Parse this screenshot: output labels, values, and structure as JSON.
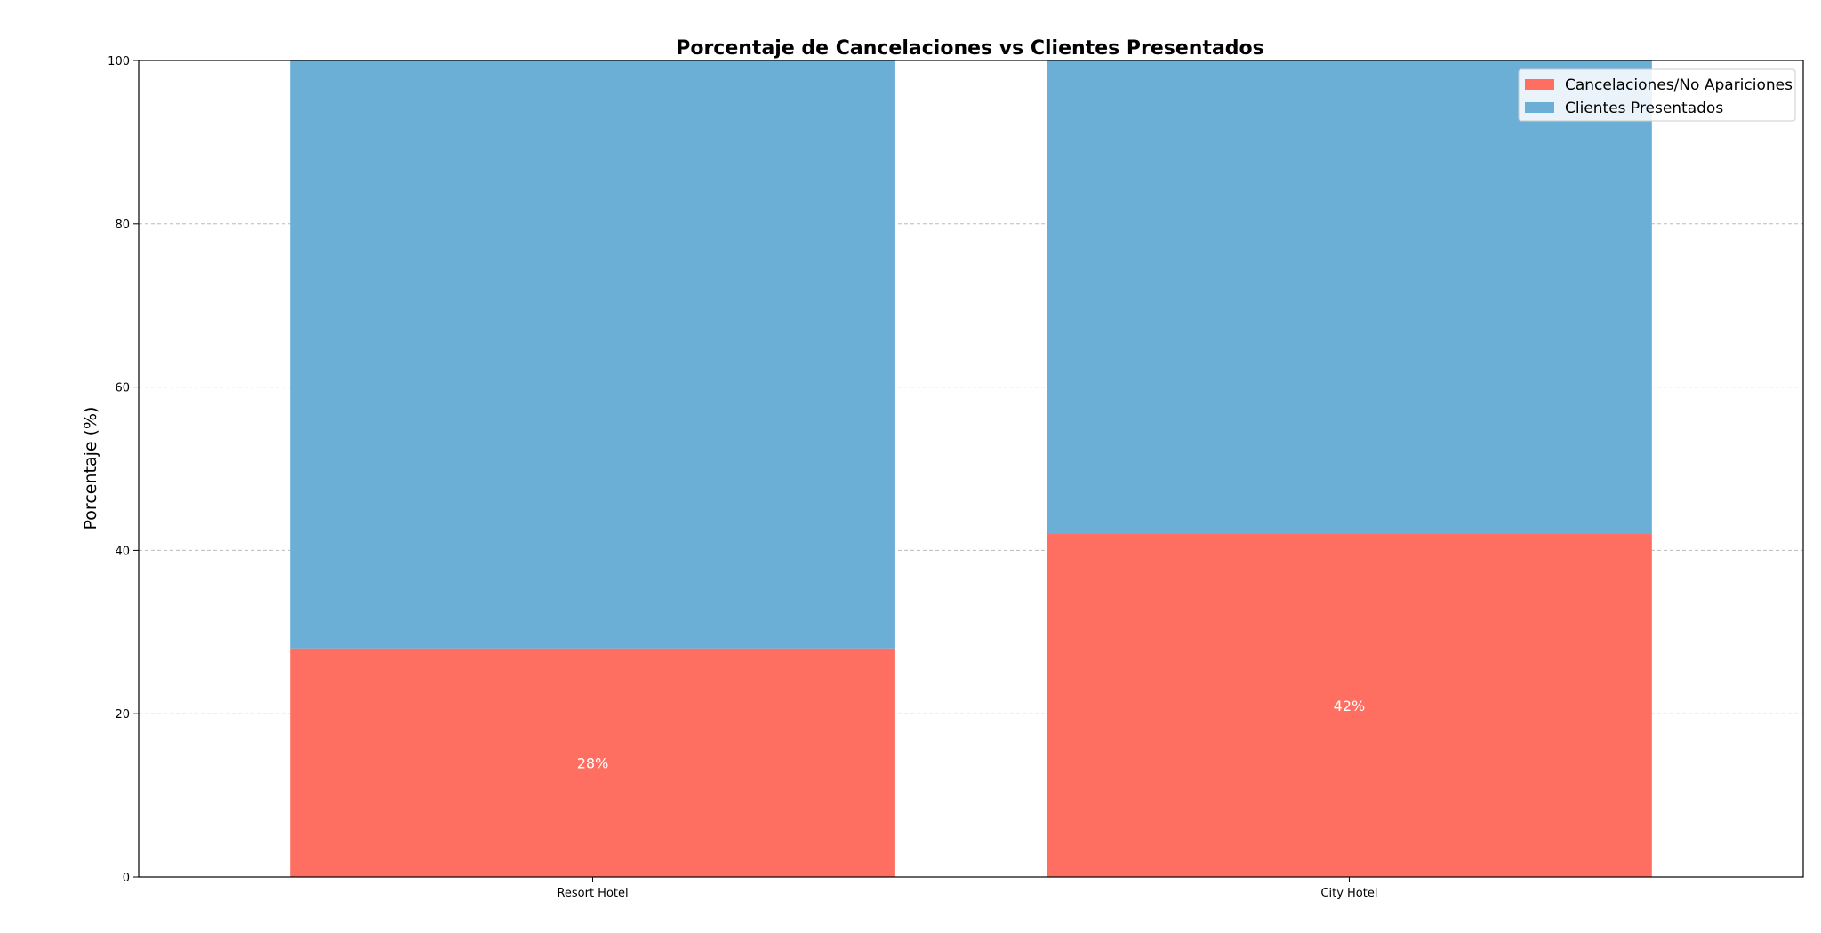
{
  "chart_data": {
    "type": "bar",
    "stacked": true,
    "title": "Porcentaje de Cancelaciones vs Clientes Presentados",
    "xlabel": "",
    "ylabel": "Porcentaje (%)",
    "categories": [
      "Resort Hotel",
      "City Hotel"
    ],
    "series": [
      {
        "name": "Cancelaciones/No Apariciones",
        "values": [
          28,
          42
        ],
        "color": "#ff6f61",
        "labels": [
          "28%",
          "42%"
        ]
      },
      {
        "name": "Clientes Presentados",
        "values": [
          72,
          58
        ],
        "color": "#6baed6"
      }
    ],
    "ylim": [
      0,
      100
    ],
    "yticks": [
      0,
      20,
      40,
      60,
      80,
      100
    ],
    "grid": {
      "y": true,
      "style": "dashed",
      "color": "#bbbbbb"
    },
    "legend": "top-right"
  }
}
